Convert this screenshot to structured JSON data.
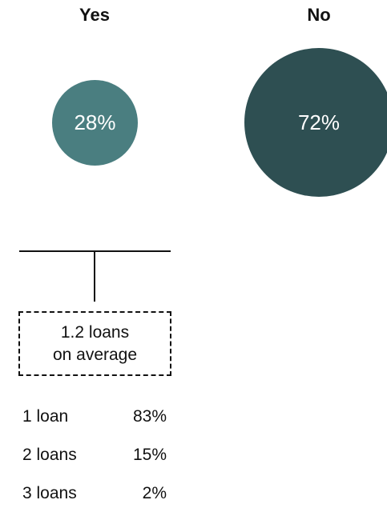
{
  "chart_data": {
    "type": "bubble",
    "categories": [
      "Yes",
      "No"
    ],
    "values": [
      28,
      72
    ],
    "value_labels": [
      "28%",
      "72%"
    ],
    "colors": [
      "#4a7e80",
      "#2e4f52"
    ],
    "breakdown": {
      "average_line1": "1.2 loans",
      "average_line2": "on average",
      "items": [
        {
          "label": "1 loan",
          "value": 83,
          "display": "83%"
        },
        {
          "label": "2 loans",
          "value": 15,
          "display": "15%"
        },
        {
          "label": "3 loans",
          "value": 2,
          "display": "2%"
        }
      ]
    }
  }
}
